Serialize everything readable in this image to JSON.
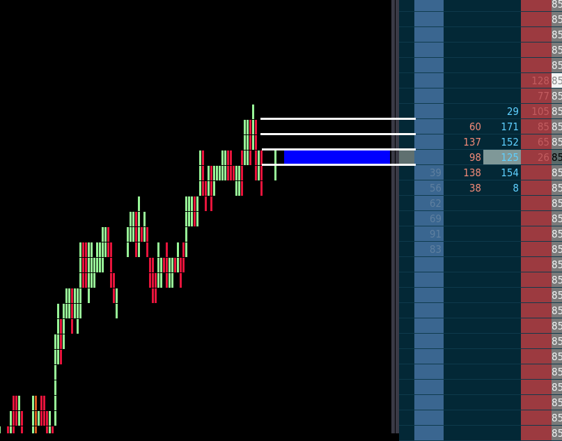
{
  "colors": {
    "up": "#98f898",
    "down": "#e8143c",
    "neutral": "#d85a1e",
    "order_block": "#0000ff",
    "bid_column": "#3a6690",
    "ask_column": "#9c3a40",
    "price_column": "#7a7a7a",
    "ladder_bg": "#032836"
  },
  "chart": {
    "bars": [
      {
        "i": -1,
        "row": 28,
        "cells": "g"
      },
      {
        "i": 2,
        "row": 28,
        "cells": "r"
      },
      {
        "i": 3,
        "row": 27,
        "cells": "gg"
      },
      {
        "i": 4,
        "row": 26,
        "cells": "rrr"
      },
      {
        "i": 5,
        "row": 26,
        "cells": "rr"
      },
      {
        "i": 6,
        "row": 26,
        "cells": "gg"
      },
      {
        "i": 7,
        "row": 27,
        "cells": "rr"
      },
      {
        "i": 11,
        "row": 26,
        "cells": "ggg"
      },
      {
        "i": 12,
        "row": 26,
        "cells": "ooo"
      },
      {
        "i": 13,
        "row": 27,
        "cells": "g"
      },
      {
        "i": 14,
        "row": 26,
        "cells": "rr"
      },
      {
        "i": 15,
        "row": 26,
        "cells": "rr"
      },
      {
        "i": 16,
        "row": 27,
        "cells": "rr"
      },
      {
        "i": 17,
        "row": 27,
        "cells": "gg"
      },
      {
        "i": 18,
        "row": 28,
        "cells": "r"
      },
      {
        "i": 19,
        "row": 22,
        "cells": "gggggg"
      },
      {
        "i": 20,
        "row": 20,
        "cells": "gggg"
      },
      {
        "i": 21,
        "row": 21,
        "cells": "rrr"
      },
      {
        "i": 22,
        "row": 20,
        "cells": "ggg"
      },
      {
        "i": 23,
        "row": 19,
        "cells": "gg"
      },
      {
        "i": 24,
        "row": 19,
        "cells": "gg"
      },
      {
        "i": 25,
        "row": 19,
        "cells": "rrr"
      },
      {
        "i": 26,
        "row": 19,
        "cells": "gg"
      },
      {
        "i": 27,
        "row": 19,
        "cells": "ggg"
      },
      {
        "i": 28,
        "row": 16,
        "cells": "ggggg"
      },
      {
        "i": 29,
        "row": 16,
        "cells": "rrr"
      },
      {
        "i": 30,
        "row": 16,
        "cells": "rrr"
      },
      {
        "i": 31,
        "row": 16,
        "cells": "gggg"
      },
      {
        "i": 32,
        "row": 16,
        "cells": "ggg"
      },
      {
        "i": 33,
        "row": 17,
        "cells": "gg"
      },
      {
        "i": 34,
        "row": 16,
        "cells": "gg"
      },
      {
        "i": 35,
        "row": 16,
        "cells": "gg"
      },
      {
        "i": 36,
        "row": 15,
        "cells": "ggg"
      },
      {
        "i": 37,
        "row": 15,
        "cells": "gg"
      },
      {
        "i": 38,
        "row": 15,
        "cells": "rr"
      },
      {
        "i": 39,
        "row": 16,
        "cells": "rrr"
      },
      {
        "i": 40,
        "row": 18,
        "cells": "rr"
      },
      {
        "i": 41,
        "row": 19,
        "cells": "gg"
      },
      {
        "i": 45,
        "row": 15,
        "cells": "gg"
      },
      {
        "i": 46,
        "row": 14,
        "cells": "gg"
      },
      {
        "i": 47,
        "row": 14,
        "cells": "gg"
      },
      {
        "i": 48,
        "row": 14,
        "cells": "rrr"
      },
      {
        "i": 49,
        "row": 13,
        "cells": "gggg"
      },
      {
        "i": 50,
        "row": 15,
        "cells": "r"
      },
      {
        "i": 51,
        "row": 14,
        "cells": "gg"
      },
      {
        "i": 52,
        "row": 15,
        "cells": "rr"
      },
      {
        "i": 53,
        "row": 17,
        "cells": "rr"
      },
      {
        "i": 54,
        "row": 17,
        "cells": "rrr"
      },
      {
        "i": 55,
        "row": 18,
        "cells": "rr"
      },
      {
        "i": 56,
        "row": 16,
        "cells": "ggg"
      },
      {
        "i": 57,
        "row": 17,
        "cells": "gg"
      },
      {
        "i": 58,
        "row": 17,
        "cells": "r"
      },
      {
        "i": 59,
        "row": 16,
        "cells": "rrr"
      },
      {
        "i": 60,
        "row": 17,
        "cells": "gg"
      },
      {
        "i": 61,
        "row": 17,
        "cells": "gg"
      },
      {
        "i": 62,
        "row": 17,
        "cells": "r"
      },
      {
        "i": 63,
        "row": 16,
        "cells": "gg"
      },
      {
        "i": 64,
        "row": 17,
        "cells": "rr"
      },
      {
        "i": 65,
        "row": 16,
        "cells": "rr"
      },
      {
        "i": 66,
        "row": 13,
        "cells": "gggg"
      },
      {
        "i": 67,
        "row": 13,
        "cells": "gg"
      },
      {
        "i": 68,
        "row": 13,
        "cells": "gg"
      },
      {
        "i": 69,
        "row": 13,
        "cells": "rr"
      },
      {
        "i": 70,
        "row": 13,
        "cells": "gg"
      },
      {
        "i": 71,
        "row": 10,
        "cells": "ggg"
      },
      {
        "i": 72,
        "row": 10,
        "cells": "rrr"
      },
      {
        "i": 73,
        "row": 12,
        "cells": "rr"
      },
      {
        "i": 74,
        "row": 11,
        "cells": "gg"
      },
      {
        "i": 75,
        "row": 11,
        "cells": "rrr"
      },
      {
        "i": 76,
        "row": 11,
        "cells": "gg"
      },
      {
        "i": 77,
        "row": 11,
        "cells": "g"
      },
      {
        "i": 78,
        "row": 11,
        "cells": "g"
      },
      {
        "i": 79,
        "row": 10,
        "cells": "gg"
      },
      {
        "i": 80,
        "row": 10,
        "cells": "gg"
      },
      {
        "i": 81,
        "row": 10,
        "cells": "rr"
      },
      {
        "i": 82,
        "row": 10,
        "cells": "rr"
      },
      {
        "i": 83,
        "row": 11,
        "cells": "r"
      },
      {
        "i": 84,
        "row": 11,
        "cells": "gg"
      },
      {
        "i": 85,
        "row": 11,
        "cells": "gg"
      },
      {
        "i": 86,
        "row": 10,
        "cells": "rrr"
      },
      {
        "i": 87,
        "row": 8,
        "cells": "ggg"
      },
      {
        "i": 88,
        "row": 8,
        "cells": "ggg"
      },
      {
        "i": 89,
        "row": 8,
        "cells": "rrr"
      },
      {
        "i": 90,
        "row": 7,
        "cells": "ggg"
      },
      {
        "i": 91,
        "row": 8,
        "cells": "rrrr"
      },
      {
        "i": 92,
        "row": 10,
        "cells": "gg"
      },
      {
        "i": 93,
        "row": 10,
        "cells": "rrr"
      },
      {
        "i": 98,
        "row": 10,
        "cells": "gg"
      }
    ],
    "level_lines_rows": [
      7,
      8,
      9,
      10
    ],
    "order_block_row": 10
  },
  "ladder": {
    "current_row": 10,
    "highlight_price_row": 5,
    "rows": [
      {
        "bid": "",
        "sell": "",
        "buy": "",
        "ask": "",
        "price": "85"
      },
      {
        "bid": "",
        "sell": "",
        "buy": "",
        "ask": "",
        "price": "85"
      },
      {
        "bid": "",
        "sell": "",
        "buy": "",
        "ask": "",
        "price": "85"
      },
      {
        "bid": "",
        "sell": "",
        "buy": "",
        "ask": "",
        "price": "85"
      },
      {
        "bid": "",
        "sell": "",
        "buy": "",
        "ask": "",
        "price": "85"
      },
      {
        "bid": "",
        "sell": "",
        "buy": "",
        "ask": "128",
        "price": "85"
      },
      {
        "bid": "",
        "sell": "",
        "buy": "",
        "ask": "77",
        "price": "85"
      },
      {
        "bid": "",
        "sell": "",
        "buy": "29",
        "ask": "105",
        "price": "85"
      },
      {
        "bid": "",
        "sell": "60",
        "buy": "171",
        "ask": "85",
        "price": "85"
      },
      {
        "bid": "",
        "sell": "137",
        "buy": "152",
        "ask": "65",
        "price": "85"
      },
      {
        "bid": "",
        "sell": "98",
        "buy": "125",
        "ask": "26",
        "price": "85"
      },
      {
        "bid": "39",
        "sell": "138",
        "buy": "154",
        "ask": "",
        "price": "85"
      },
      {
        "bid": "56",
        "sell": "38",
        "buy": "8",
        "ask": "",
        "price": "85"
      },
      {
        "bid": "62",
        "sell": "",
        "buy": "",
        "ask": "",
        "price": "85"
      },
      {
        "bid": "69",
        "sell": "",
        "buy": "",
        "ask": "",
        "price": "85"
      },
      {
        "bid": "91",
        "sell": "",
        "buy": "",
        "ask": "",
        "price": "85"
      },
      {
        "bid": "83",
        "sell": "",
        "buy": "",
        "ask": "",
        "price": "85"
      },
      {
        "bid": "",
        "sell": "",
        "buy": "",
        "ask": "",
        "price": "85"
      },
      {
        "bid": "",
        "sell": "",
        "buy": "",
        "ask": "",
        "price": "85"
      },
      {
        "bid": "",
        "sell": "",
        "buy": "",
        "ask": "",
        "price": "85"
      },
      {
        "bid": "",
        "sell": "",
        "buy": "",
        "ask": "",
        "price": "85"
      },
      {
        "bid": "",
        "sell": "",
        "buy": "",
        "ask": "",
        "price": "85"
      },
      {
        "bid": "",
        "sell": "",
        "buy": "",
        "ask": "",
        "price": "85"
      },
      {
        "bid": "",
        "sell": "",
        "buy": "",
        "ask": "",
        "price": "85"
      },
      {
        "bid": "",
        "sell": "",
        "buy": "",
        "ask": "",
        "price": "85"
      },
      {
        "bid": "",
        "sell": "",
        "buy": "",
        "ask": "",
        "price": "85"
      },
      {
        "bid": "",
        "sell": "",
        "buy": "",
        "ask": "",
        "price": "85"
      },
      {
        "bid": "",
        "sell": "",
        "buy": "",
        "ask": "",
        "price": "85"
      },
      {
        "bid": "",
        "sell": "",
        "buy": "",
        "ask": "",
        "price": "85"
      }
    ]
  }
}
